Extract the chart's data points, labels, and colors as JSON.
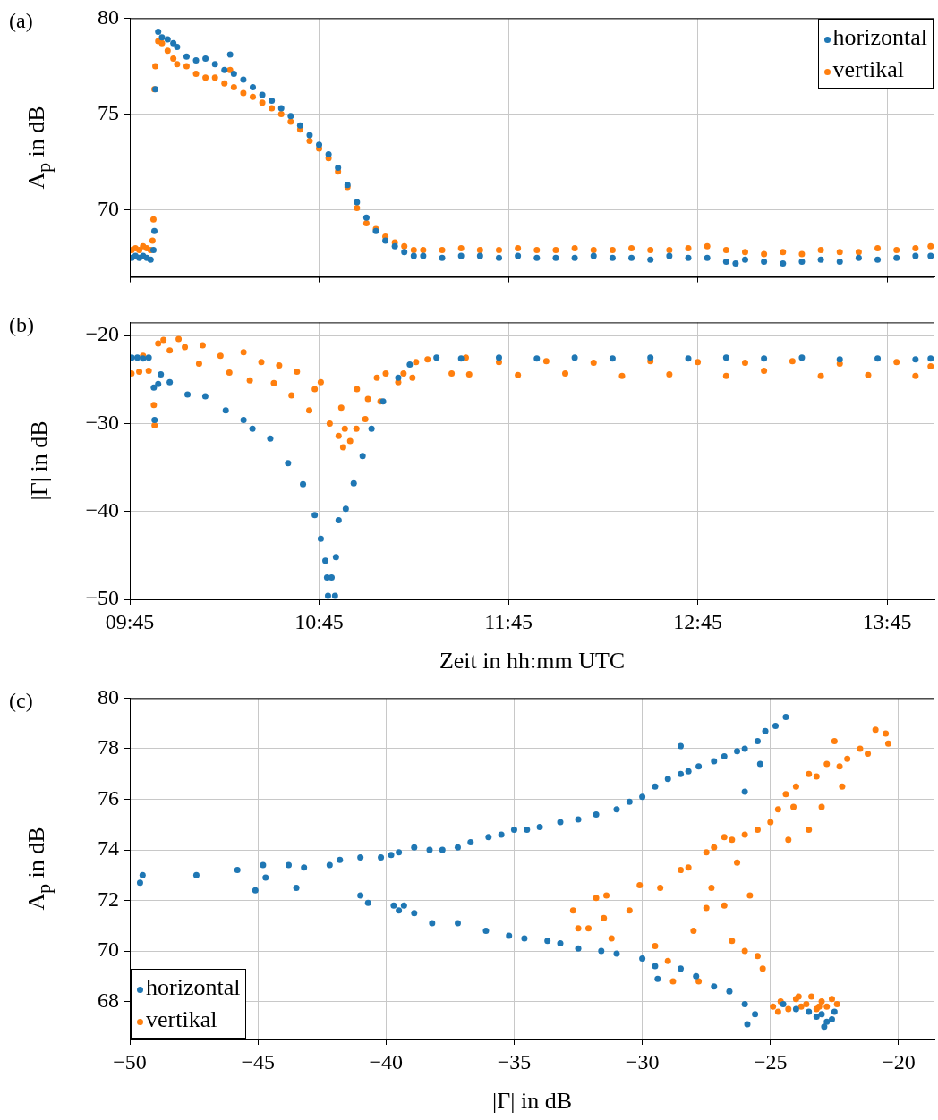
{
  "chart_data": [
    {
      "type": "scatter",
      "annotations": [
        "(a)"
      ],
      "ylabel": "A$_{p}$ in dB",
      "xlim": [
        9.75,
        14.0
      ],
      "ylim": [
        66.5,
        80
      ],
      "xticks": [
        {
          "value": 9.75,
          "label": null
        },
        {
          "value": 10.75,
          "label": null
        },
        {
          "value": 11.75,
          "label": null
        },
        {
          "value": 12.75,
          "label": null
        },
        {
          "value": 13.75,
          "label": null
        }
      ],
      "yticks": [
        70,
        75,
        80
      ],
      "tick_labels": "y",
      "grid": true,
      "legend": "top right",
      "marker": "circle",
      "series": [
        {
          "name": "horizontal",
          "color": "#1f77b4",
          "x": [
            9.76,
            9.78,
            9.8,
            9.82,
            9.84,
            9.86,
            9.875,
            9.88,
            9.885,
            9.9,
            9.92,
            9.95,
            9.98,
            10.0,
            10.05,
            10.1,
            10.15,
            10.2,
            10.25,
            10.28,
            10.3,
            10.35,
            10.4,
            10.45,
            10.5,
            10.55,
            10.6,
            10.65,
            10.7,
            10.75,
            10.8,
            10.85,
            10.9,
            10.95,
            11.0,
            11.05,
            11.1,
            11.15,
            11.2,
            11.25,
            11.3,
            11.4,
            11.5,
            11.6,
            11.7,
            11.8,
            11.9,
            12.0,
            12.1,
            12.2,
            12.3,
            12.4,
            12.5,
            12.6,
            12.7,
            12.8,
            12.9,
            12.95,
            13.0,
            13.1,
            13.2,
            13.3,
            13.4,
            13.5,
            13.6,
            13.7,
            13.8,
            13.9,
            13.98
          ],
          "values": [
            67.5,
            67.6,
            67.5,
            67.6,
            67.5,
            67.4,
            67.9,
            68.9,
            76.3,
            79.3,
            79.0,
            78.9,
            78.7,
            78.5,
            78.0,
            77.8,
            77.9,
            77.6,
            77.3,
            78.1,
            77.1,
            76.8,
            76.4,
            76.0,
            75.7,
            75.3,
            74.9,
            74.4,
            73.9,
            73.4,
            72.9,
            72.2,
            71.3,
            70.4,
            69.6,
            68.9,
            68.4,
            68.1,
            67.8,
            67.6,
            67.6,
            67.5,
            67.6,
            67.6,
            67.5,
            67.6,
            67.5,
            67.5,
            67.5,
            67.6,
            67.5,
            67.5,
            67.4,
            67.6,
            67.5,
            67.5,
            67.3,
            67.2,
            67.4,
            67.3,
            67.2,
            67.3,
            67.4,
            67.3,
            67.5,
            67.4,
            67.5,
            67.6,
            67.6
          ]
        },
        {
          "name": "vertikal",
          "color": "#ff7f0e",
          "x": [
            9.76,
            9.78,
            9.8,
            9.82,
            9.84,
            9.86,
            9.87,
            9.875,
            9.88,
            9.885,
            9.9,
            9.92,
            9.95,
            9.98,
            10.0,
            10.05,
            10.1,
            10.15,
            10.2,
            10.25,
            10.28,
            10.3,
            10.35,
            10.4,
            10.45,
            10.5,
            10.55,
            10.6,
            10.65,
            10.7,
            10.75,
            10.8,
            10.85,
            10.9,
            10.95,
            11.0,
            11.05,
            11.1,
            11.15,
            11.2,
            11.25,
            11.3,
            11.4,
            11.5,
            11.6,
            11.7,
            11.8,
            11.9,
            12.0,
            12.1,
            12.2,
            12.3,
            12.4,
            12.5,
            12.6,
            12.7,
            12.8,
            12.9,
            13.0,
            13.1,
            13.2,
            13.3,
            13.4,
            13.5,
            13.6,
            13.7,
            13.8,
            13.9,
            13.98
          ],
          "values": [
            67.9,
            68.0,
            67.9,
            68.1,
            68.0,
            67.9,
            68.4,
            69.5,
            76.3,
            77.5,
            78.8,
            78.7,
            78.3,
            77.9,
            77.6,
            77.5,
            77.1,
            76.9,
            76.9,
            76.6,
            77.3,
            76.4,
            76.1,
            75.9,
            75.6,
            75.3,
            75.0,
            74.6,
            74.2,
            73.6,
            73.2,
            72.7,
            72.0,
            71.2,
            70.1,
            69.3,
            69.0,
            68.6,
            68.3,
            68.1,
            67.9,
            67.9,
            67.9,
            68.0,
            67.9,
            67.9,
            68.0,
            67.9,
            67.9,
            68.0,
            67.9,
            67.9,
            68.0,
            67.9,
            67.9,
            68.0,
            68.1,
            67.9,
            67.8,
            67.7,
            67.8,
            67.7,
            67.9,
            67.8,
            67.8,
            68.0,
            67.9,
            68.0,
            68.1
          ]
        }
      ]
    },
    {
      "type": "scatter",
      "annotations": [
        "(b)"
      ],
      "xlabel": "Zeit in hh:mm UTC",
      "ylabel": "|Γ| in dB",
      "xlim": [
        9.75,
        14.0
      ],
      "ylim": [
        -50,
        -18.5
      ],
      "xticks": [
        {
          "value": 9.75,
          "label": "09:45"
        },
        {
          "value": 10.75,
          "label": "10:45"
        },
        {
          "value": 11.75,
          "label": "11:45"
        },
        {
          "value": 12.75,
          "label": "12:45"
        },
        {
          "value": 13.75,
          "label": "13:45"
        }
      ],
      "yticks": [
        -50,
        -40,
        -30,
        -20
      ],
      "grid": true,
      "marker": "circle",
      "series": [
        {
          "color": "#1f77b4",
          "x": [
            9.76,
            9.79,
            9.82,
            9.85,
            9.877,
            9.881,
            9.9,
            9.914,
            9.961,
            10.055,
            10.149,
            10.257,
            10.351,
            10.398,
            10.492,
            10.586,
            10.665,
            10.727,
            10.759,
            10.783,
            10.792,
            10.797,
            10.816,
            10.834,
            10.839,
            10.853,
            10.891,
            10.933,
            10.98,
            11.027,
            11.088,
            11.168,
            11.229,
            11.37,
            11.5,
            11.7,
            11.9,
            12.1,
            12.3,
            12.5,
            12.7,
            12.9,
            13.1,
            13.3,
            13.5,
            13.7,
            13.9,
            13.98
          ],
          "values": [
            -22.5,
            -22.5,
            -22.6,
            -22.5,
            -25.9,
            -29.6,
            -25.5,
            -24.4,
            -25.3,
            -26.7,
            -26.9,
            -28.5,
            -29.6,
            -30.6,
            -31.7,
            -34.5,
            -36.9,
            -40.4,
            -43.1,
            -45.6,
            -47.5,
            -49.6,
            -47.5,
            -49.6,
            -45.2,
            -41.0,
            -39.7,
            -36.8,
            -33.7,
            -30.6,
            -27.5,
            -24.8,
            -23.3,
            -22.5,
            -22.6,
            -22.5,
            -22.6,
            -22.5,
            -22.6,
            -22.5,
            -22.6,
            -22.5,
            -22.6,
            -22.5,
            -22.7,
            -22.6,
            -22.7,
            -22.6
          ]
        },
        {
          "color": "#ff7f0e",
          "x": [
            9.759,
            9.8,
            9.82,
            9.85,
            9.877,
            9.881,
            9.9,
            9.928,
            9.961,
            10.008,
            10.041,
            10.116,
            10.135,
            10.229,
            10.276,
            10.351,
            10.384,
            10.445,
            10.511,
            10.539,
            10.604,
            10.633,
            10.698,
            10.727,
            10.759,
            10.806,
            10.853,
            10.867,
            10.877,
            10.886,
            10.914,
            10.947,
            10.95,
            10.994,
            11.008,
            11.055,
            11.074,
            11.102,
            11.168,
            11.196,
            11.243,
            11.262,
            11.323,
            11.45,
            11.525,
            11.543,
            11.7,
            11.8,
            11.95,
            12.05,
            12.2,
            12.35,
            12.5,
            12.6,
            12.75,
            12.9,
            13.0,
            13.1,
            13.25,
            13.4,
            13.5,
            13.65,
            13.8,
            13.9,
            13.98
          ],
          "values": [
            -24.3,
            -24.1,
            -22.3,
            -24.0,
            -27.9,
            -30.2,
            -20.9,
            -20.5,
            -21.7,
            -20.4,
            -21.3,
            -23.2,
            -21.1,
            -22.3,
            -24.2,
            -21.9,
            -25.1,
            -23.0,
            -25.4,
            -23.4,
            -26.8,
            -24.1,
            -28.5,
            -26.1,
            -25.3,
            -30.0,
            -31.4,
            -28.2,
            -32.7,
            -30.6,
            -32.0,
            -30.6,
            -26.1,
            -29.5,
            -27.2,
            -24.8,
            -27.5,
            -24.3,
            -25.3,
            -24.3,
            -24.8,
            -23.0,
            -22.7,
            -24.3,
            -22.5,
            -24.4,
            -23.0,
            -24.5,
            -22.9,
            -24.3,
            -23.1,
            -24.6,
            -22.9,
            -24.4,
            -23.0,
            -24.6,
            -23.1,
            -24.0,
            -22.9,
            -24.6,
            -23.2,
            -24.5,
            -23.0,
            -24.6,
            -23.5
          ]
        }
      ]
    },
    {
      "type": "scatter",
      "annotations": [
        "(c)"
      ],
      "xlabel": "|Γ| in dB",
      "ylabel": "A$_{p}$ in dB",
      "xlim": [
        -50,
        -18.6
      ],
      "ylim": [
        66.5,
        80
      ],
      "xticks": [
        -50,
        -45,
        -40,
        -35,
        -30,
        -25,
        -20
      ],
      "yticks": [
        68,
        70,
        72,
        74,
        76,
        78,
        80
      ],
      "grid": true,
      "legend": "bottom left",
      "marker": "circle",
      "series": [
        {
          "name": "horizontal",
          "color": "#1f77b4",
          "x": [
            -49.6,
            -49.5,
            -47.4,
            -45.8,
            -45.1,
            -44.8,
            -44.7,
            -43.8,
            -43.5,
            -43.2,
            -42.2,
            -41.8,
            -41.0,
            -40.2,
            -39.8,
            -39.5,
            -38.9,
            -38.3,
            -37.8,
            -37.2,
            -36.7,
            -36.0,
            -35.5,
            -35.0,
            -34.5,
            -34.0,
            -33.2,
            -32.5,
            -31.8,
            -31.0,
            -30.5,
            -30.0,
            -29.5,
            -29.0,
            -28.5,
            -28.2,
            -27.8,
            -27.2,
            -26.8,
            -26.3,
            -26.0,
            -25.5,
            -25.2,
            -24.8,
            -24.4,
            -28.5,
            -25.4,
            -26.0,
            -41.0,
            -40.7,
            -39.7,
            -39.5,
            -39.3,
            -38.9,
            -38.2,
            -37.2,
            -36.1,
            -35.2,
            -34.6,
            -33.7,
            -33.2,
            -32.5,
            -31.6,
            -31.0,
            -30.0,
            -29.5,
            -29.4,
            -28.5,
            -27.9,
            -27.2,
            -26.6,
            -26.0,
            -25.6,
            -25.9,
            -24.5,
            -24.0,
            -23.5,
            -23.0,
            -22.8,
            -22.9,
            -22.6,
            -22.5,
            -23.2
          ],
          "values": [
            72.7,
            73.0,
            73.0,
            73.2,
            72.4,
            73.4,
            72.9,
            73.4,
            72.5,
            73.3,
            73.4,
            73.6,
            73.7,
            73.7,
            73.8,
            73.9,
            74.1,
            74.0,
            74.0,
            74.1,
            74.3,
            74.5,
            74.6,
            74.8,
            74.8,
            74.9,
            75.1,
            75.2,
            75.4,
            75.6,
            75.9,
            76.1,
            76.5,
            76.8,
            77.0,
            77.1,
            77.3,
            77.5,
            77.7,
            77.9,
            78.0,
            78.3,
            78.7,
            78.9,
            79.25,
            78.1,
            77.4,
            76.3,
            72.2,
            71.9,
            71.8,
            71.6,
            71.8,
            71.5,
            71.1,
            71.1,
            70.8,
            70.6,
            70.5,
            70.4,
            70.3,
            70.1,
            70.0,
            69.9,
            69.7,
            69.4,
            68.9,
            69.3,
            69.0,
            68.6,
            68.4,
            67.9,
            67.5,
            67.1,
            67.9,
            67.7,
            67.6,
            67.5,
            67.2,
            67.0,
            67.3,
            67.6,
            67.4
          ]
        },
        {
          "name": "vertikal",
          "color": "#ff7f0e",
          "x": [
            -32.7,
            -32.1,
            -31.4,
            -31.8,
            -31.5,
            -30.5,
            -30.1,
            -29.3,
            -28.5,
            -28.2,
            -27.5,
            -27.2,
            -26.8,
            -26.5,
            -26.0,
            -25.5,
            -25.0,
            -24.7,
            -24.4,
            -24.0,
            -23.5,
            -23.2,
            -22.8,
            -22.3,
            -22.0,
            -21.5,
            -21.2,
            -20.9,
            -20.5,
            -20.4,
            -22.5,
            -22.2,
            -24.3,
            -23.0,
            -24.1,
            -23.5,
            -32.5,
            -31.2,
            -29.5,
            -29.0,
            -28.0,
            -27.5,
            -26.5,
            -26.0,
            -25.5,
            -25.3,
            -27.8,
            -28.8,
            -26.8,
            -25.8,
            -26.3,
            -27.3,
            -24.9,
            -24.6,
            -24.3,
            -24.0,
            -23.8,
            -23.6,
            -23.4,
            -23.2,
            -23.0,
            -22.8,
            -22.6,
            -22.4,
            -24.7,
            -23.9,
            -23.1
          ],
          "values": [
            71.6,
            70.9,
            72.2,
            72.1,
            71.3,
            71.6,
            72.6,
            72.5,
            73.2,
            73.3,
            73.9,
            74.1,
            74.5,
            74.4,
            74.6,
            74.8,
            75.1,
            75.6,
            76.2,
            76.5,
            77.0,
            76.9,
            77.4,
            77.3,
            77.6,
            78.0,
            77.8,
            78.75,
            78.6,
            78.2,
            78.3,
            76.5,
            74.4,
            75.7,
            75.7,
            74.8,
            70.9,
            70.5,
            70.2,
            69.6,
            70.8,
            71.7,
            70.4,
            70.0,
            69.8,
            69.3,
            68.8,
            68.8,
            71.8,
            72.2,
            73.5,
            72.5,
            67.8,
            68.0,
            67.7,
            68.1,
            67.8,
            67.9,
            68.2,
            67.7,
            68.0,
            67.8,
            68.1,
            67.9,
            67.6,
            68.2,
            67.8
          ]
        }
      ]
    }
  ]
}
